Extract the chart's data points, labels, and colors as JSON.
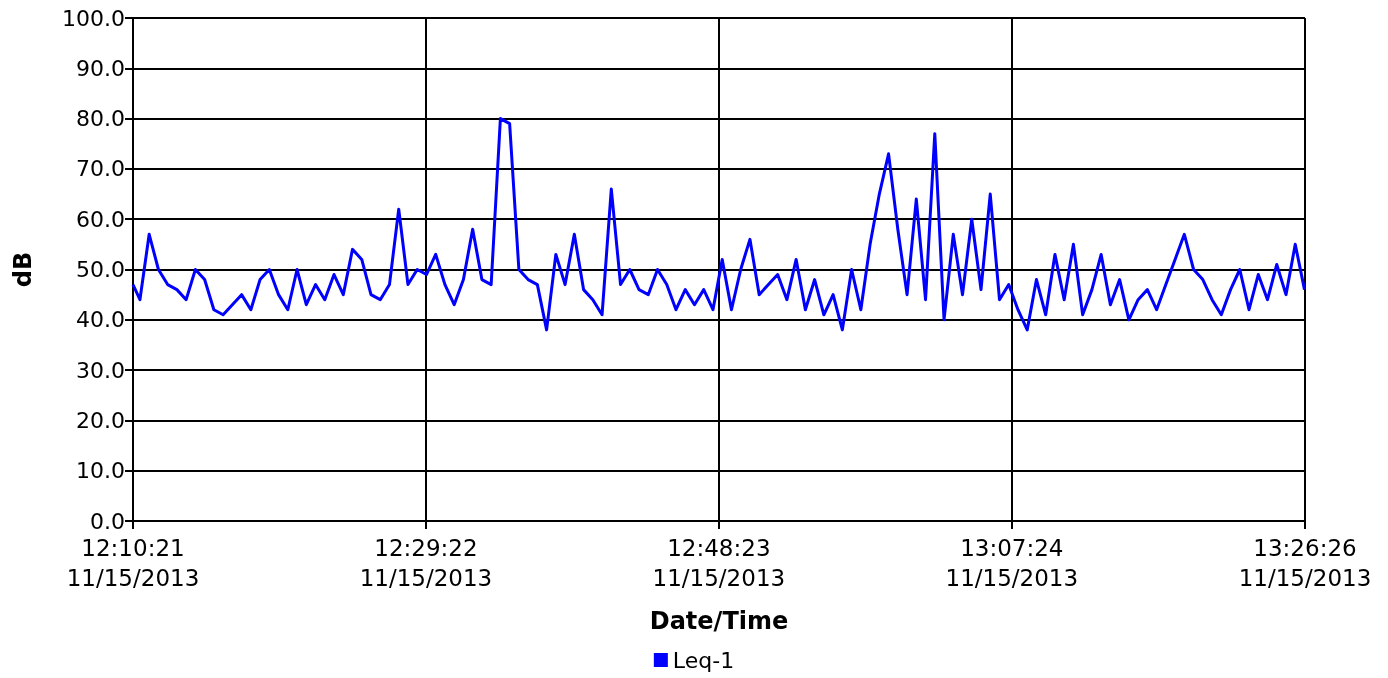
{
  "chart_data": {
    "type": "line",
    "xlabel": "Date/Time",
    "ylabel": "dB",
    "xlim": [
      "2013-11-15T12:10:21",
      "2013-11-15T13:26:26"
    ],
    "xticks": [
      {
        "value": "2013-11-15T12:10:21",
        "label": "12:10:21\n11/15/2013"
      },
      {
        "value": "2013-11-15T12:29:22",
        "label": "12:29:22\n11/15/2013"
      },
      {
        "value": "2013-11-15T12:48:23",
        "label": "12:48:23\n11/15/2013"
      },
      {
        "value": "2013-11-15T13:07:24",
        "label": "13:07:24\n11/15/2013"
      },
      {
        "value": "2013-11-15T13:26:26",
        "label": "13:26:26\n11/15/2013"
      }
    ],
    "ylim": [
      0,
      100
    ],
    "yticks": [
      {
        "value": 0,
        "label": "0.0"
      },
      {
        "value": 10,
        "label": "10.0"
      },
      {
        "value": 20,
        "label": "20.0"
      },
      {
        "value": 30,
        "label": "30.0"
      },
      {
        "value": 40,
        "label": "40.0"
      },
      {
        "value": 50,
        "label": "50.0"
      },
      {
        "value": 60,
        "label": "60.0"
      },
      {
        "value": 70,
        "label": "70.0"
      },
      {
        "value": 80,
        "label": "80.0"
      },
      {
        "value": 90,
        "label": "90.0"
      },
      {
        "value": 100,
        "label": "100.0"
      }
    ],
    "grid": true,
    "legend": "bottom",
    "marker": "none",
    "line_style": "solid",
    "x": [
      "2013-11-15T12:10:21",
      "2013-11-15T12:10:48",
      "2013-11-15T12:11:24",
      "2013-11-15T12:12:00",
      "2013-11-15T12:12:36",
      "2013-11-15T12:13:12",
      "2013-11-15T12:13:48",
      "2013-11-15T12:14:24",
      "2013-11-15T12:15:00",
      "2013-11-15T12:15:36",
      "2013-11-15T12:16:12",
      "2013-11-15T12:16:48",
      "2013-11-15T12:17:24",
      "2013-11-15T12:18:00",
      "2013-11-15T12:18:36",
      "2013-11-15T12:19:12",
      "2013-11-15T12:19:48",
      "2013-11-15T12:20:24",
      "2013-11-15T12:21:00",
      "2013-11-15T12:21:36",
      "2013-11-15T12:22:12",
      "2013-11-15T12:22:48",
      "2013-11-15T12:23:24",
      "2013-11-15T12:24:00",
      "2013-11-15T12:24:36",
      "2013-11-15T12:25:12",
      "2013-11-15T12:25:48",
      "2013-11-15T12:26:24",
      "2013-11-15T12:27:00",
      "2013-11-15T12:27:36",
      "2013-11-15T12:28:12",
      "2013-11-15T12:28:48",
      "2013-11-15T12:29:24",
      "2013-11-15T12:30:00",
      "2013-11-15T12:30:36",
      "2013-11-15T12:31:12",
      "2013-11-15T12:31:48",
      "2013-11-15T12:32:24",
      "2013-11-15T12:33:00",
      "2013-11-15T12:33:36",
      "2013-11-15T12:34:12",
      "2013-11-15T12:34:48",
      "2013-11-15T12:35:24",
      "2013-11-15T12:36:00",
      "2013-11-15T12:36:36",
      "2013-11-15T12:37:12",
      "2013-11-15T12:37:48",
      "2013-11-15T12:38:24",
      "2013-11-15T12:39:00",
      "2013-11-15T12:39:36",
      "2013-11-15T12:40:12",
      "2013-11-15T12:40:48",
      "2013-11-15T12:41:24",
      "2013-11-15T12:42:00",
      "2013-11-15T12:42:36",
      "2013-11-15T12:43:12",
      "2013-11-15T12:43:48",
      "2013-11-15T12:44:24",
      "2013-11-15T12:45:00",
      "2013-11-15T12:45:36",
      "2013-11-15T12:46:12",
      "2013-11-15T12:46:48",
      "2013-11-15T12:47:24",
      "2013-11-15T12:48:00",
      "2013-11-15T12:48:36",
      "2013-11-15T12:49:12",
      "2013-11-15T12:49:48",
      "2013-11-15T12:50:24",
      "2013-11-15T12:51:00",
      "2013-11-15T12:51:36",
      "2013-11-15T12:52:12",
      "2013-11-15T12:52:48",
      "2013-11-15T12:53:24",
      "2013-11-15T12:54:00",
      "2013-11-15T12:54:36",
      "2013-11-15T12:55:12",
      "2013-11-15T12:55:48",
      "2013-11-15T12:56:24",
      "2013-11-15T12:57:00",
      "2013-11-15T12:57:36",
      "2013-11-15T12:58:12",
      "2013-11-15T12:58:48",
      "2013-11-15T12:59:24",
      "2013-11-15T13:00:00",
      "2013-11-15T13:00:36",
      "2013-11-15T13:01:12",
      "2013-11-15T13:01:48",
      "2013-11-15T13:02:24",
      "2013-11-15T13:03:00",
      "2013-11-15T13:03:36",
      "2013-11-15T13:04:12",
      "2013-11-15T13:04:48",
      "2013-11-15T13:05:24",
      "2013-11-15T13:06:00",
      "2013-11-15T13:06:36",
      "2013-11-15T13:07:12",
      "2013-11-15T13:07:48",
      "2013-11-15T13:08:24",
      "2013-11-15T13:09:00",
      "2013-11-15T13:09:36",
      "2013-11-15T13:10:12",
      "2013-11-15T13:10:48",
      "2013-11-15T13:11:24",
      "2013-11-15T13:12:00",
      "2013-11-15T13:12:36",
      "2013-11-15T13:13:12",
      "2013-11-15T13:13:48",
      "2013-11-15T13:14:24",
      "2013-11-15T13:15:00",
      "2013-11-15T13:15:36",
      "2013-11-15T13:16:12",
      "2013-11-15T13:16:48",
      "2013-11-15T13:17:24",
      "2013-11-15T13:18:00",
      "2013-11-15T13:18:36",
      "2013-11-15T13:19:12",
      "2013-11-15T13:19:48",
      "2013-11-15T13:20:24",
      "2013-11-15T13:21:00",
      "2013-11-15T13:21:36",
      "2013-11-15T13:22:12",
      "2013-11-15T13:22:48",
      "2013-11-15T13:23:24",
      "2013-11-15T13:24:00",
      "2013-11-15T13:24:36",
      "2013-11-15T13:25:12",
      "2013-11-15T13:25:48",
      "2013-11-15T13:26:24"
    ],
    "series": [
      {
        "name": "Leq-1",
        "color": "#0000ff",
        "values": [
          47,
          44,
          57,
          50,
          47,
          46,
          44,
          50,
          48,
          42,
          41,
          43,
          45,
          42,
          48,
          50,
          45,
          42,
          50,
          43,
          47,
          44,
          49,
          45,
          54,
          52,
          45,
          44,
          47,
          62,
          47,
          50,
          49,
          53,
          47,
          43,
          48,
          58,
          48,
          47,
          80,
          79,
          50,
          48,
          47,
          38,
          53,
          47,
          57,
          46,
          44,
          41,
          66,
          47,
          50,
          46,
          45,
          50,
          47,
          42,
          46,
          43,
          46,
          42,
          52,
          42,
          50,
          56,
          45,
          47,
          49,
          44,
          52,
          42,
          48,
          41,
          45,
          38,
          50,
          42,
          55,
          65,
          73,
          58,
          45,
          64,
          44,
          77,
          40,
          57,
          45,
          60,
          46,
          65,
          44,
          47,
          42,
          38,
          48,
          41,
          53,
          44,
          55,
          41,
          46,
          53,
          43,
          48,
          40,
          44,
          46,
          42,
          47,
          52,
          57,
          50,
          48,
          44,
          41,
          46,
          50,
          42,
          49,
          44,
          51,
          45,
          55,
          46
        ]
      }
    ]
  }
}
